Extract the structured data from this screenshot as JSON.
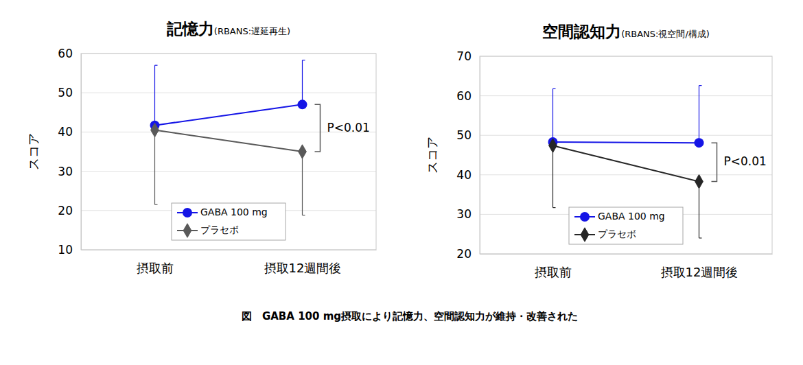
{
  "chart_data": [
    {
      "type": "line",
      "title": "記憶力",
      "subtitle": "(RBANS:遅延再生)",
      "y_label": "スコア",
      "categories": [
        "摂取前",
        "摂取12週間後"
      ],
      "series": [
        {
          "name": "GABA 100 mg",
          "color": "#1515e6",
          "marker": "circle",
          "line_style": "solid",
          "values": [
            41.7,
            47.0
          ],
          "error_plus": [
            15.3,
            11.3
          ]
        },
        {
          "name": "プラセボ",
          "color": "#595959",
          "marker": "diamond",
          "line_style": "solid",
          "values": [
            40.5,
            35.0
          ],
          "error_minus": [
            19.0,
            16.2
          ]
        }
      ],
      "ylim": [
        10,
        60
      ],
      "yticks": [
        10,
        20,
        30,
        40,
        50,
        60
      ],
      "grid": true,
      "legend": "bottom",
      "annotations": [
        {
          "text": "P<0.01"
        }
      ]
    },
    {
      "type": "line",
      "title": "空間認知力",
      "subtitle": "(RBANS:視空間/構成)",
      "y_label": "スコア",
      "categories": [
        "摂取前",
        "摂取12週間後"
      ],
      "series": [
        {
          "name": "GABA 100 mg",
          "color": "#1515e6",
          "marker": "circle",
          "line_style": "solid",
          "values": [
            48.3,
            48.1
          ],
          "error_plus": [
            13.5,
            14.5
          ]
        },
        {
          "name": "プラセボ",
          "color": "#262626",
          "marker": "diamond",
          "line_style": "solid",
          "values": [
            47.4,
            38.3
          ],
          "error_minus": [
            15.7,
            14.3
          ]
        }
      ],
      "ylim": [
        20,
        70
      ],
      "yticks": [
        20,
        30,
        40,
        50,
        60,
        70
      ],
      "grid": true,
      "legend": "bottom",
      "annotations": [
        {
          "text": "P<0.01"
        }
      ]
    }
  ],
  "caption": "図　GABA 100 mg摂取により記憶力、空間認知力が維持・改善された"
}
